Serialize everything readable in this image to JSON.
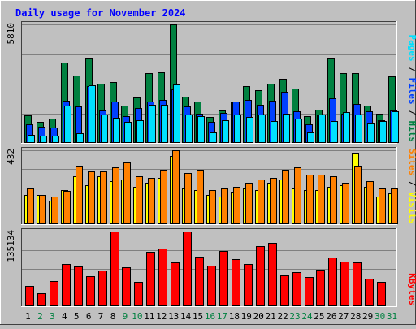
{
  "title": "Daily usage for November 2024",
  "colors": {
    "title": "#0000ff",
    "hits": "#008040",
    "files": "#0040ff",
    "pages": "#00e0ff",
    "visits": "#ffff00",
    "sites": "#ff8000",
    "kbytes": "#ff0000",
    "weekend": "#008040",
    "weekday": "#000000",
    "grid": "#808080"
  },
  "chart_data": [
    {
      "type": "bar",
      "ymax_label": "5810",
      "right_labels": [
        "Pages",
        "Files",
        "Hits"
      ],
      "ylim": [
        0,
        5810
      ],
      "categories": [
        "1",
        "2",
        "3",
        "4",
        "5",
        "6",
        "7",
        "8",
        "9",
        "10",
        "11",
        "12",
        "13",
        "14",
        "15",
        "16",
        "17",
        "18",
        "19",
        "20",
        "21",
        "22",
        "23",
        "24",
        "25",
        "26",
        "27",
        "28",
        "29",
        "30",
        "31"
      ],
      "series": [
        {
          "name": "Hits",
          "values": [
            1340,
            1020,
            1180,
            3920,
            3300,
            4130,
            2890,
            3000,
            1850,
            2240,
            3420,
            3460,
            5810,
            2270,
            2010,
            1280,
            1580,
            2000,
            2790,
            2580,
            2900,
            3160,
            2680,
            1300,
            1620,
            4150,
            3420,
            3420,
            1830,
            1420,
            3250
          ]
        },
        {
          "name": "Files",
          "values": [
            900,
            780,
            770,
            2050,
            1790,
            2800,
            1590,
            2020,
            1310,
            1730,
            2040,
            2090,
            2640,
            1780,
            1420,
            1050,
            1480,
            2040,
            2090,
            1880,
            2050,
            2490,
            1540,
            910,
            1380,
            2180,
            1450,
            1920,
            1540,
            1130,
            1580
          ]
        },
        {
          "name": "Pages",
          "values": [
            390,
            340,
            360,
            1820,
            480,
            2840,
            1380,
            1250,
            1050,
            1110,
            1880,
            1880,
            2850,
            1380,
            1300,
            510,
            1130,
            1380,
            1280,
            1380,
            1080,
            1420,
            1200,
            510,
            1380,
            1060,
            1510,
            1380,
            960,
            1070,
            1550
          ]
        }
      ]
    },
    {
      "type": "bar",
      "ymax_label": "432",
      "right_labels": [
        "Sites",
        "Visits"
      ],
      "ylim": [
        0,
        432
      ],
      "categories": [
        "1",
        "2",
        "3",
        "4",
        "5",
        "6",
        "7",
        "8",
        "9",
        "10",
        "11",
        "12",
        "13",
        "14",
        "15",
        "16",
        "17",
        "18",
        "19",
        "20",
        "21",
        "22",
        "23",
        "24",
        "25",
        "26",
        "27",
        "28",
        "29",
        "30",
        "31"
      ],
      "series": [
        {
          "name": "Visits",
          "values": [
            170,
            170,
            140,
            200,
            280,
            230,
            280,
            250,
            260,
            220,
            240,
            270,
            400,
            210,
            200,
            170,
            160,
            190,
            210,
            200,
            240,
            260,
            210,
            200,
            200,
            220,
            230,
            420,
            220,
            160,
            180
          ]
        },
        {
          "name": "Sites",
          "values": [
            210,
            170,
            160,
            195,
            340,
            310,
            310,
            330,
            360,
            280,
            270,
            320,
            430,
            300,
            320,
            200,
            210,
            220,
            240,
            260,
            270,
            320,
            330,
            290,
            290,
            280,
            240,
            340,
            250,
            210,
            210
          ]
        }
      ]
    },
    {
      "type": "bar",
      "ymax_label": "135134",
      "right_labels": [
        "KBytes"
      ],
      "ylim": [
        0,
        135134
      ],
      "categories": [
        "1",
        "2",
        "3",
        "4",
        "5",
        "6",
        "7",
        "8",
        "9",
        "10",
        "11",
        "12",
        "13",
        "14",
        "15",
        "16",
        "17",
        "18",
        "19",
        "20",
        "21",
        "22",
        "23",
        "24",
        "25",
        "26",
        "27",
        "28",
        "29",
        "30",
        "31"
      ],
      "series": [
        {
          "name": "KBytes",
          "values": [
            36000,
            24000,
            46000,
            77000,
            72000,
            54000,
            64000,
            135000,
            70000,
            44000,
            99000,
            104000,
            79000,
            135000,
            89000,
            73000,
            100000,
            85000,
            77000,
            109000,
            114000,
            56000,
            61000,
            53000,
            66000,
            88000,
            81000,
            79000,
            50000,
            44000,
            0
          ]
        }
      ]
    }
  ],
  "weekend_days": [
    "2",
    "3",
    "9",
    "10",
    "16",
    "17",
    "23",
    "24",
    "30",
    "31"
  ]
}
